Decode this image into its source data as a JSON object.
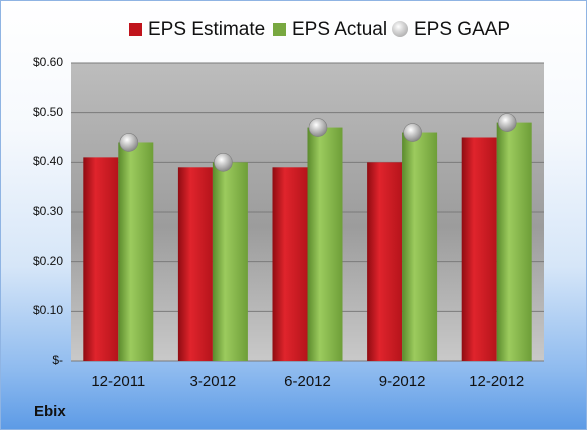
{
  "chart_data": {
    "type": "bar",
    "categories": [
      "12-2011",
      "3-2012",
      "6-2012",
      "9-2012",
      "12-2012"
    ],
    "series": [
      {
        "name": "EPS Estimate",
        "values": [
          0.41,
          0.39,
          0.39,
          0.4,
          0.45
        ],
        "color": "#c0141c"
      },
      {
        "name": "EPS Actual",
        "values": [
          0.44,
          0.4,
          0.47,
          0.46,
          0.48
        ],
        "color": "#78a840"
      },
      {
        "name": "EPS GAAP",
        "values": [
          0.44,
          0.4,
          0.47,
          0.46,
          0.48
        ],
        "color": "#b0b0b0",
        "marker": "circle"
      }
    ],
    "ylim": [
      0,
      0.6
    ],
    "yticks": [
      0,
      0.1,
      0.2,
      0.3,
      0.4,
      0.5,
      0.6
    ],
    "ytick_labels": [
      "$-",
      "$0.10",
      "$0.20",
      "$0.30",
      "$0.40",
      "$0.50",
      "$0.60"
    ],
    "grid": true,
    "legend_position": "top",
    "company": "Ebix"
  }
}
